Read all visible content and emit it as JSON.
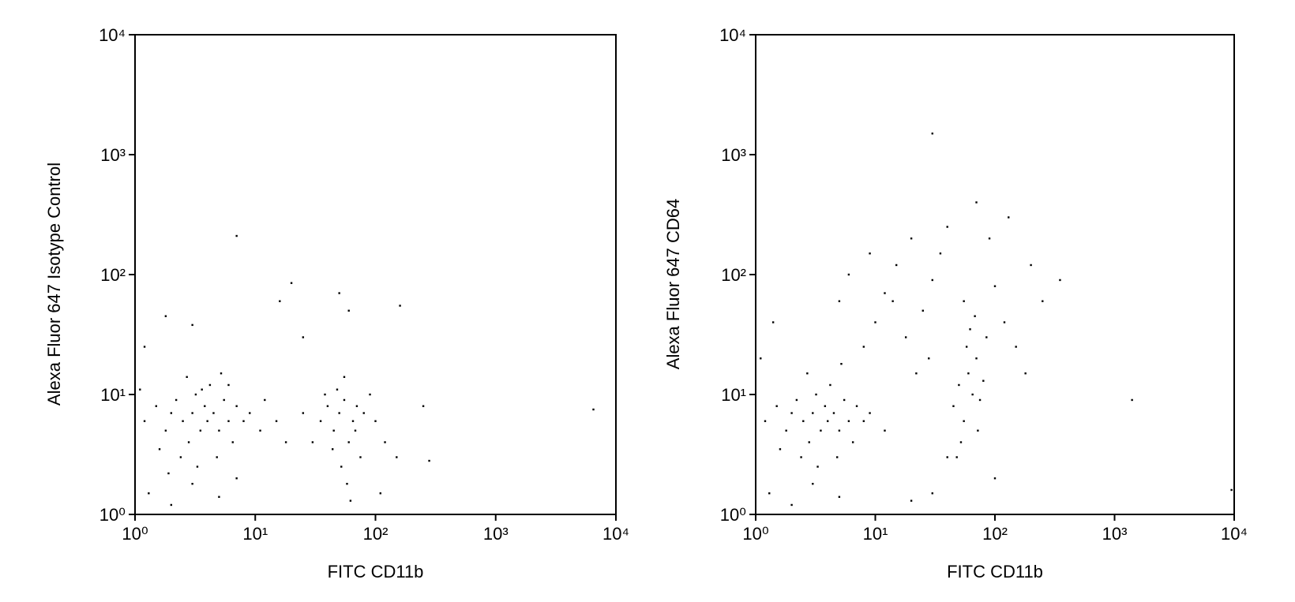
{
  "chart_data": [
    {
      "type": "scatter",
      "x_label": "FITC CD11b",
      "y_label": "Alexa Fluor 647 Isotype Control",
      "xscale": "log",
      "yscale": "log",
      "xlim": [
        1,
        10000
      ],
      "ylim": [
        1,
        10000
      ],
      "xticks": [
        {
          "value": 1,
          "label": "10⁰"
        },
        {
          "value": 10,
          "label": "10¹"
        },
        {
          "value": 100,
          "label": "10²"
        },
        {
          "value": 1000,
          "label": "10³"
        },
        {
          "value": 10000,
          "label": "10⁴"
        }
      ],
      "yticks": [
        {
          "value": 1,
          "label": "10⁰"
        },
        {
          "value": 10,
          "label": "10¹"
        },
        {
          "value": 100,
          "label": "10²"
        },
        {
          "value": 1000,
          "label": "10³"
        },
        {
          "value": 10000,
          "label": "10⁴"
        }
      ],
      "series": [
        {
          "color": "#000000",
          "x": [
            1.2,
            1.5,
            1.8,
            2,
            2.2,
            2.5,
            2.8,
            3,
            3.2,
            3.5,
            3.8,
            4,
            4.2,
            4.5,
            5,
            5.5,
            6,
            6.5,
            7,
            8,
            2.4,
            3.3,
            1.6,
            4.8,
            9,
            11,
            1.3,
            2,
            3,
            5,
            7,
            1.1,
            2.7,
            5.2,
            3.6,
            1.9,
            6,
            12,
            15,
            18,
            35,
            40,
            45,
            50,
            55,
            60,
            65,
            70,
            75,
            48,
            52,
            58,
            62,
            44,
            68,
            80,
            90,
            38,
            100,
            120,
            30,
            25,
            150,
            110,
            55,
            7,
            20,
            16,
            50,
            60,
            160,
            6500,
            280,
            3,
            1.8,
            1.2,
            25,
            250
          ],
          "y": [
            6,
            8,
            5,
            7,
            9,
            6,
            4,
            7,
            10,
            5,
            8,
            6,
            12,
            7,
            5,
            9,
            6,
            4,
            8,
            6,
            3,
            2.5,
            3.5,
            3,
            7,
            5,
            1.5,
            1.2,
            1.8,
            1.4,
            2,
            11,
            14,
            15,
            11,
            2.2,
            12,
            9,
            6,
            4,
            6,
            8,
            5,
            7,
            9,
            4,
            6,
            8,
            3,
            11,
            2.5,
            1.8,
            1.3,
            3.5,
            5,
            7,
            10,
            10,
            6,
            4,
            4,
            7,
            3,
            1.5,
            14,
            210,
            85,
            60,
            70,
            50,
            55,
            7.5,
            2.8,
            38,
            45,
            25,
            30,
            8
          ]
        }
      ]
    },
    {
      "type": "scatter",
      "x_label": "FITC CD11b",
      "y_label": "Alexa Fluor 647 CD64",
      "xscale": "log",
      "yscale": "log",
      "xlim": [
        1,
        10000
      ],
      "ylim": [
        1,
        10000
      ],
      "xticks": [
        {
          "value": 1,
          "label": "10⁰"
        },
        {
          "value": 10,
          "label": "10¹"
        },
        {
          "value": 100,
          "label": "10²"
        },
        {
          "value": 1000,
          "label": "10³"
        },
        {
          "value": 10000,
          "label": "10⁴"
        }
      ],
      "yticks": [
        {
          "value": 1,
          "label": "10⁰"
        },
        {
          "value": 10,
          "label": "10¹"
        },
        {
          "value": 100,
          "label": "10²"
        },
        {
          "value": 1000,
          "label": "10³"
        },
        {
          "value": 10000,
          "label": "10⁴"
        }
      ],
      "series": [
        {
          "color": "#000000",
          "x": [
            1.2,
            1.5,
            1.8,
            2,
            2.2,
            2.5,
            2.8,
            3,
            3.2,
            3.5,
            3.8,
            4,
            4.2,
            4.5,
            5,
            5.5,
            6,
            6.5,
            7,
            8,
            2.4,
            3.3,
            1.6,
            4.8,
            9,
            1.3,
            2,
            3,
            5,
            1.1,
            1.4,
            2.7,
            5.2,
            12,
            45,
            50,
            55,
            60,
            65,
            70,
            58,
            62,
            52,
            48,
            75,
            80,
            68,
            55,
            72,
            85,
            8,
            10,
            12,
            15,
            18,
            20,
            25,
            30,
            35,
            40,
            22,
            28,
            14,
            100,
            120,
            150,
            180,
            200,
            90,
            70,
            130,
            6,
            5,
            9,
            250,
            40,
            30,
            100,
            20,
            30,
            1400,
            9500,
            350
          ],
          "y": [
            6,
            8,
            5,
            7,
            9,
            6,
            4,
            7,
            10,
            5,
            8,
            6,
            12,
            7,
            5,
            9,
            6,
            4,
            8,
            6,
            3,
            2.5,
            3.5,
            3,
            7,
            1.5,
            1.2,
            1.8,
            1.4,
            20,
            40,
            15,
            18,
            5,
            8,
            12,
            6,
            15,
            10,
            20,
            25,
            35,
            4,
            3,
            9,
            13,
            45,
            60,
            5,
            30,
            25,
            40,
            70,
            120,
            30,
            200,
            50,
            90,
            150,
            250,
            15,
            20,
            60,
            80,
            40,
            25,
            15,
            120,
            200,
            400,
            300,
            100,
            60,
            150,
            60,
            3,
            1.5,
            2,
            1.3,
            1500,
            9,
            1.6,
            90
          ]
        }
      ]
    }
  ]
}
